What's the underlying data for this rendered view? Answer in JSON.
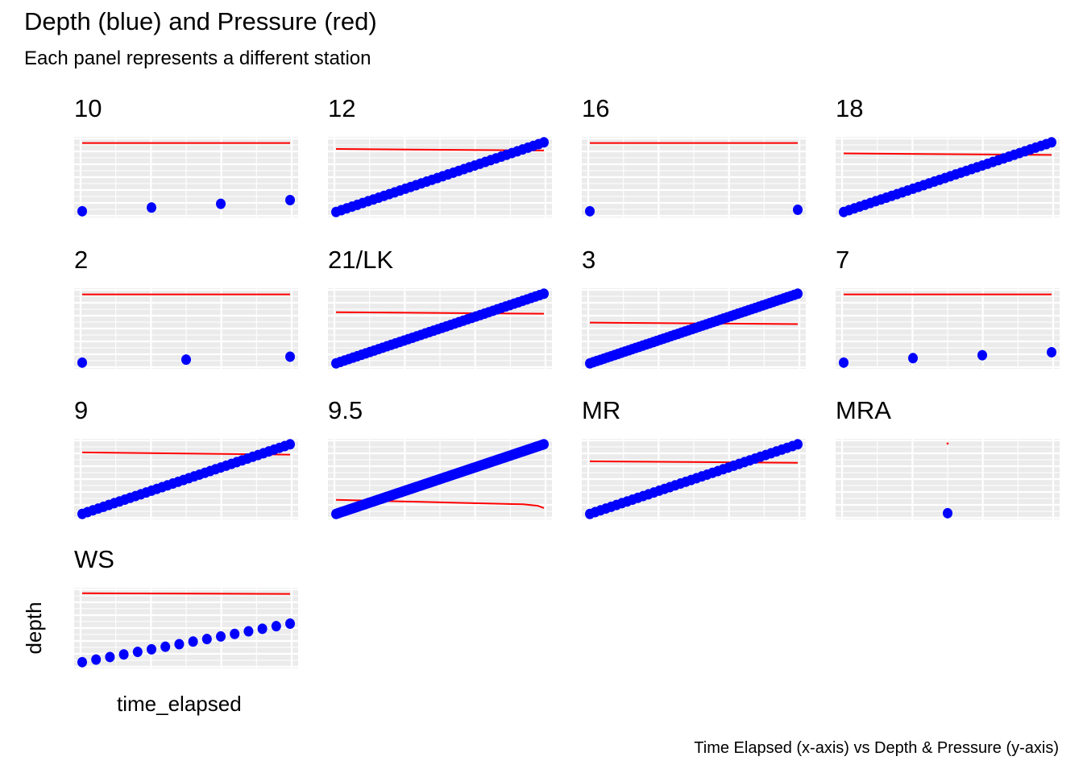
{
  "chart_data": {
    "type": "scatter",
    "title": "Depth (blue) and Pressure (red)",
    "subtitle": "Each panel represents a different station",
    "caption": "Time Elapsed (x-axis) vs Depth & Pressure (y-axis)",
    "xlabel": "time_elapsed",
    "ylabel": "depth",
    "facet_layout": "4 columns, free scales",
    "series_colors": {
      "depth": "#0000ff",
      "pressure": "#ff0000"
    },
    "grid": true,
    "panel_background": "#ebebeb",
    "panels": [
      {
        "station": "10",
        "depth": {
          "x": [
            0,
            1,
            2,
            3
          ],
          "y": [
            0.04,
            0.09,
            0.14,
            0.19
          ]
        },
        "pressure": {
          "x": [
            0,
            3
          ],
          "y": [
            0.96,
            0.96
          ]
        }
      },
      {
        "station": "12",
        "depth": {
          "x": [
            0,
            1
          ],
          "y": [
            0.03,
            0.97
          ],
          "count": 40
        },
        "pressure": {
          "x": [
            0,
            1
          ],
          "y": [
            0.88,
            0.86
          ]
        }
      },
      {
        "station": "16",
        "depth": {
          "x": [
            0,
            1
          ],
          "y": [
            0.04,
            0.06
          ]
        },
        "pressure": {
          "x": [
            0,
            1
          ],
          "y": [
            0.96,
            0.96
          ]
        }
      },
      {
        "station": "18",
        "depth": {
          "x": [
            0,
            1
          ],
          "y": [
            0.03,
            0.97
          ],
          "count": 40
        },
        "pressure": {
          "x": [
            0,
            1
          ],
          "y": [
            0.82,
            0.8
          ]
        }
      },
      {
        "station": "2",
        "depth": {
          "x": [
            0,
            1,
            2
          ],
          "y": [
            0.04,
            0.08,
            0.12
          ]
        },
        "pressure": {
          "x": [
            0,
            2
          ],
          "y": [
            0.96,
            0.96
          ]
        }
      },
      {
        "station": "21/LK",
        "depth": {
          "x": [
            0,
            1
          ],
          "y": [
            0.03,
            0.97
          ],
          "count": 50
        },
        "pressure": {
          "x": [
            0,
            1
          ],
          "y": [
            0.72,
            0.7
          ]
        }
      },
      {
        "station": "3",
        "depth": {
          "x": [
            0,
            1
          ],
          "y": [
            0.03,
            0.97
          ],
          "count": 60
        },
        "pressure": {
          "x": [
            0,
            1
          ],
          "y": [
            0.58,
            0.56
          ]
        }
      },
      {
        "station": "7",
        "depth": {
          "x": [
            0,
            1,
            2,
            3
          ],
          "y": [
            0.04,
            0.1,
            0.14,
            0.18
          ]
        },
        "pressure": {
          "x": [
            0,
            3
          ],
          "y": [
            0.96,
            0.96
          ]
        }
      },
      {
        "station": "9",
        "depth": {
          "x": [
            0,
            1
          ],
          "y": [
            0.03,
            0.97
          ],
          "count": 40
        },
        "pressure": {
          "x": [
            0,
            1
          ],
          "y": [
            0.86,
            0.83
          ]
        }
      },
      {
        "station": "9.5",
        "depth": {
          "x": [
            0,
            1
          ],
          "y": [
            0.03,
            0.97
          ],
          "count": 120
        },
        "pressure": {
          "x": [
            0,
            0.3,
            0.6,
            0.9,
            0.97,
            1
          ],
          "y": [
            0.22,
            0.2,
            0.18,
            0.16,
            0.14,
            0.11
          ]
        }
      },
      {
        "station": "MR",
        "depth": {
          "x": [
            0,
            1
          ],
          "y": [
            0.03,
            0.97
          ],
          "count": 40
        },
        "pressure": {
          "x": [
            0,
            1
          ],
          "y": [
            0.74,
            0.72
          ]
        }
      },
      {
        "station": "MRA",
        "depth": {
          "x": [
            0.5
          ],
          "y": [
            0.04
          ]
        },
        "pressure": {
          "x": [
            0.5
          ],
          "y": [
            0.98
          ]
        }
      },
      {
        "station": "WS",
        "depth": {
          "x": [
            0,
            1
          ],
          "y": [
            0.04,
            0.56
          ],
          "count": 16
        },
        "pressure": {
          "x": [
            0,
            1
          ],
          "y": [
            0.97,
            0.96
          ]
        }
      }
    ]
  }
}
